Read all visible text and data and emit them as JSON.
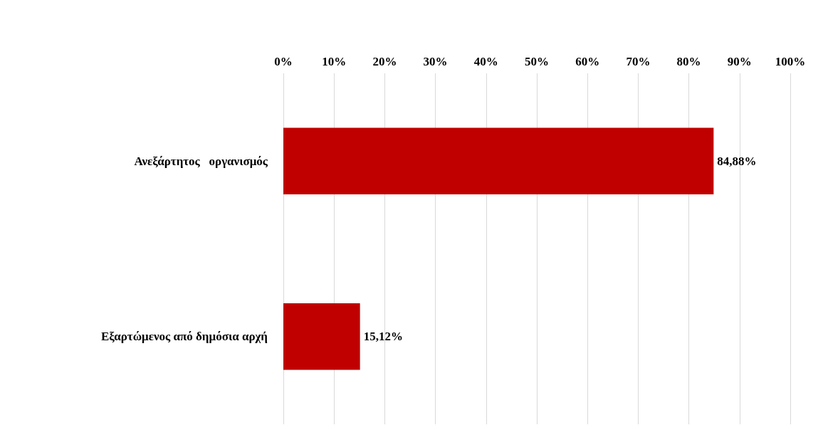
{
  "chart_data": {
    "type": "bar",
    "orientation": "horizontal",
    "categories": [
      "Ανεξάρτητος   οργανισμός",
      "Εξαρτώμενος από δημόσια αρχή"
    ],
    "values": [
      84.88,
      15.12
    ],
    "color": "#c00000",
    "value_labels": [
      "84,88%",
      "15,12%"
    ],
    "xlim": [
      0,
      100
    ],
    "xticks": [
      {
        "value": 0,
        "label": "0%"
      },
      {
        "value": 10,
        "label": "10%"
      },
      {
        "value": 20,
        "label": "20%"
      },
      {
        "value": 30,
        "label": "30%"
      },
      {
        "value": 40,
        "label": "40%"
      },
      {
        "value": 50,
        "label": "50%"
      },
      {
        "value": 60,
        "label": "60%"
      },
      {
        "value": 70,
        "label": "70%"
      },
      {
        "value": 80,
        "label": "80%"
      },
      {
        "value": 90,
        "label": "90%"
      },
      {
        "value": 100,
        "label": "100%"
      }
    ],
    "grid": "x"
  }
}
